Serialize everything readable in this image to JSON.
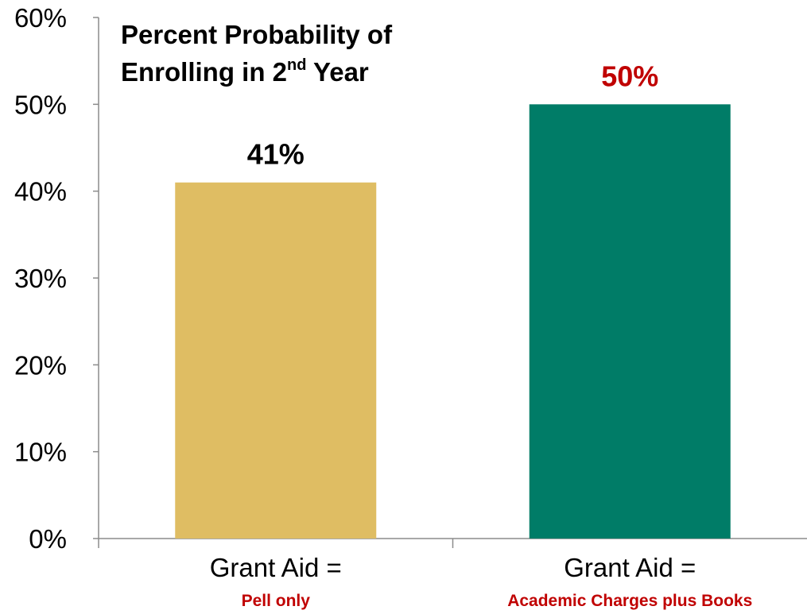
{
  "chart_data": {
    "type": "bar",
    "title": {
      "line1": "Percent Probability of",
      "line2_main": "Enrolling in 2",
      "line2_sup": "nd",
      "line2_end": " Year"
    },
    "y_ticks": [
      "0%",
      "10%",
      "20%",
      "30%",
      "40%",
      "50%",
      "60%"
    ],
    "ylim": [
      0,
      60
    ],
    "categories": [
      {
        "label": "Grant Aid =",
        "sublabel": "Pell only"
      },
      {
        "label": "Grant Aid =",
        "sublabel": "Academic Charges plus Books"
      }
    ],
    "values": [
      41,
      50
    ],
    "data_labels": [
      "41%",
      "50%"
    ],
    "colors": {
      "bars": [
        "#dfbd63",
        "#007c67"
      ],
      "data_labels": [
        "#000000",
        "#c00000"
      ],
      "sublabels": "#c00000",
      "axis": "#8c8c8c"
    },
    "grid": false,
    "legend": "none"
  }
}
